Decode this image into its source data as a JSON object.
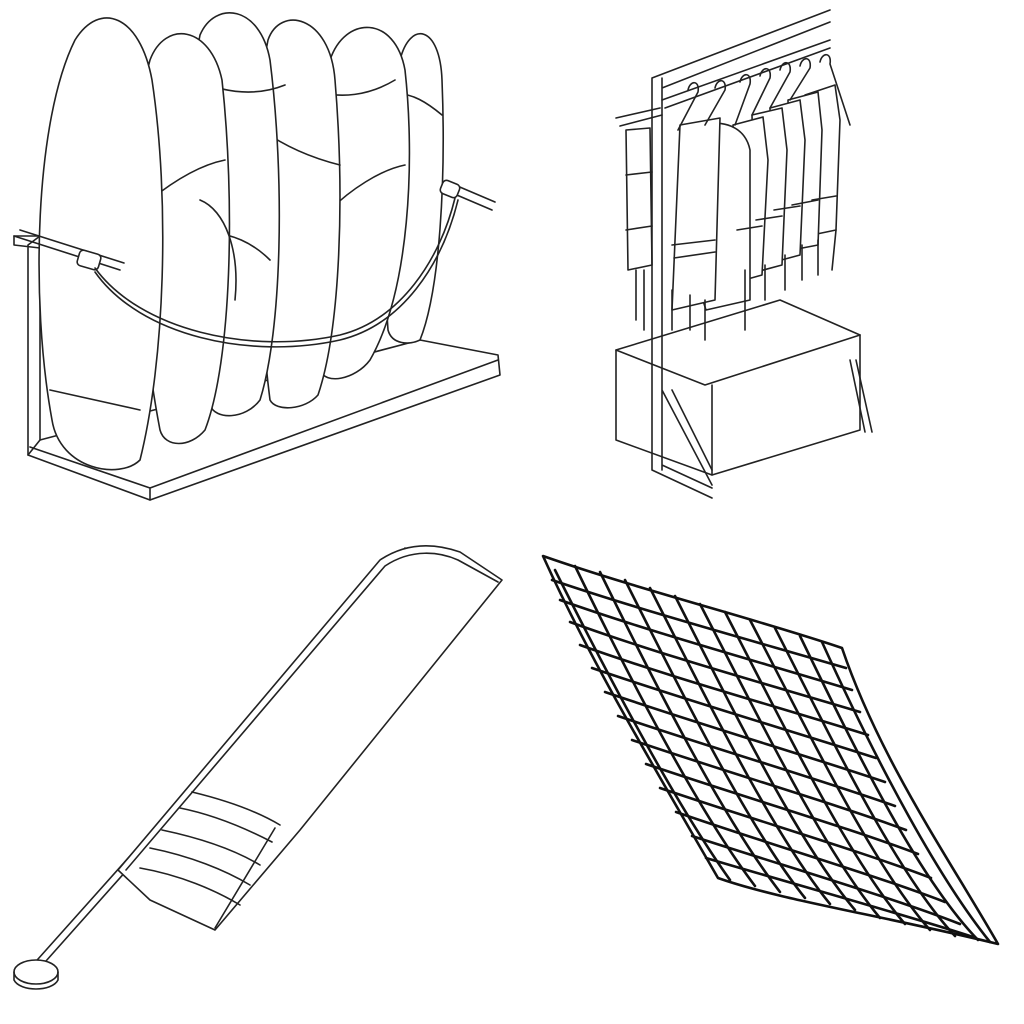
{
  "sheet": {
    "style": "black-and-white line drawing",
    "background_color": "#ffffff",
    "ink_color": "#222222"
  },
  "items": [
    {
      "id": "surfboard-rack",
      "icon": "surfboard-rack-icon"
    },
    {
      "id": "life-vest-rack",
      "icon": "life-vest-rack-icon"
    },
    {
      "id": "beach-flag",
      "icon": "beach-flag-icon"
    },
    {
      "id": "net",
      "icon": "net-icon"
    }
  ]
}
